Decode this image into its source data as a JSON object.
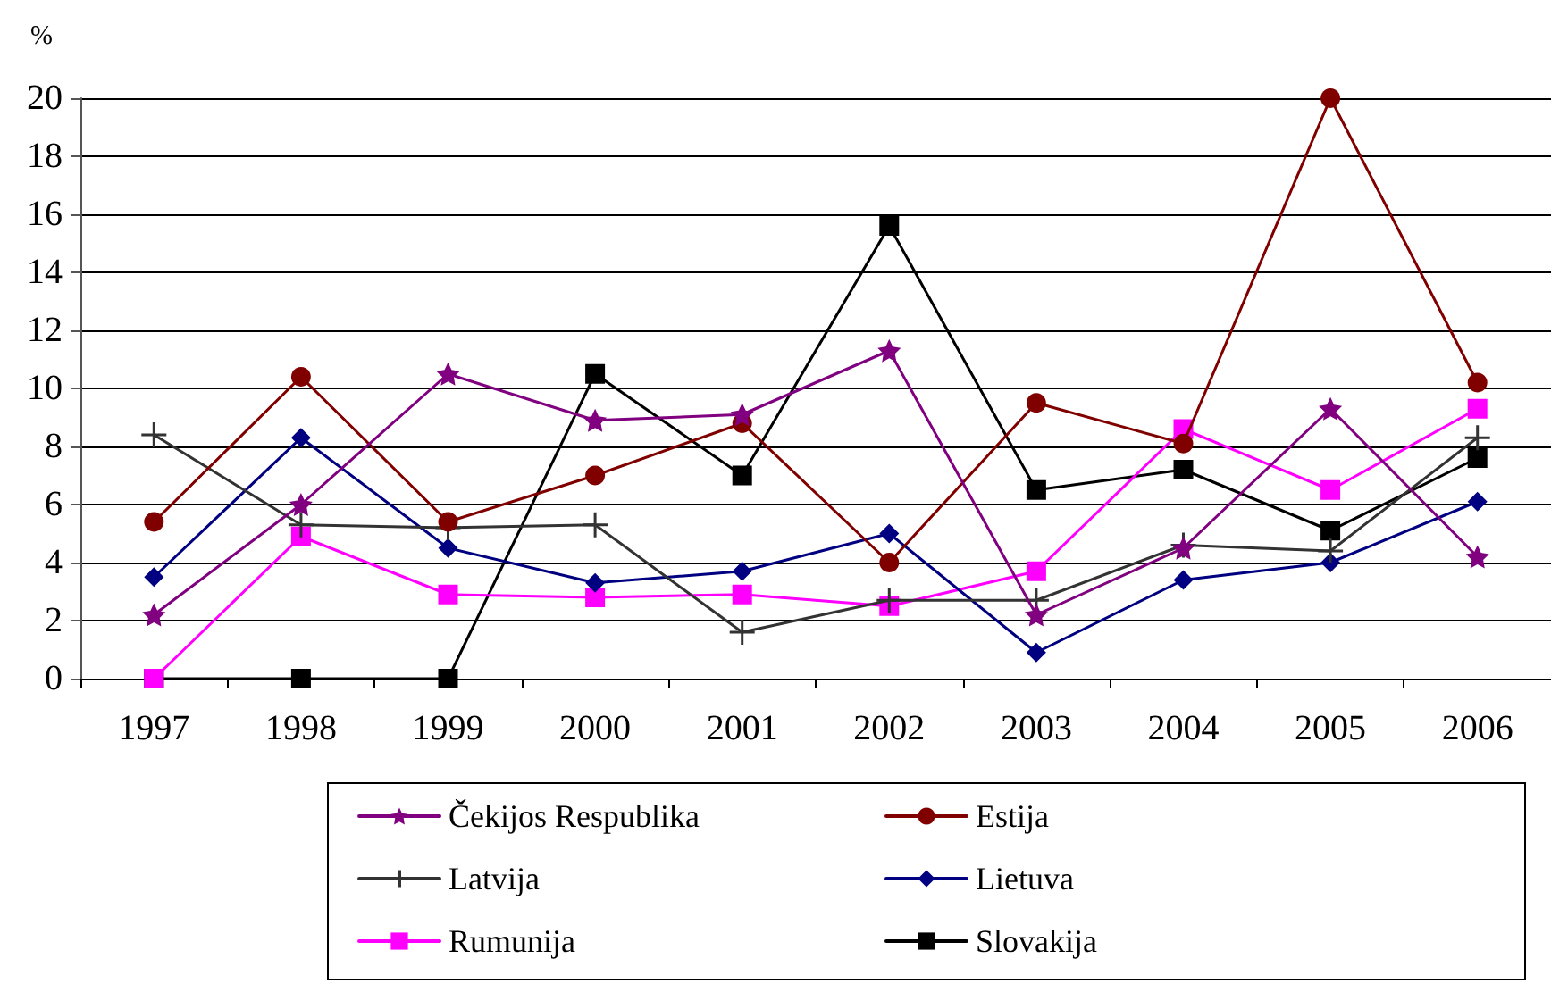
{
  "chart_data": {
    "type": "line",
    "ylabel": "%",
    "categories": [
      "1997",
      "1998",
      "1999",
      "2000",
      "2001",
      "2002",
      "2003",
      "2004",
      "2005",
      "2006"
    ],
    "series": [
      {
        "name": "Čekijos Respublika",
        "color": "#800080",
        "marker": "star",
        "values": [
          2.2,
          6.0,
          10.5,
          8.9,
          9.1,
          11.3,
          2.2,
          4.5,
          9.3,
          4.2
        ]
      },
      {
        "name": "Estija",
        "color": "#800000",
        "marker": "circle",
        "values": [
          5.4,
          10.4,
          5.4,
          7.0,
          8.8,
          4.0,
          9.5,
          8.1,
          20.0,
          10.2
        ]
      },
      {
        "name": "Latvija",
        "color": "#333333",
        "marker": "cross",
        "values": [
          8.4,
          5.3,
          5.2,
          5.3,
          1.6,
          2.7,
          2.7,
          4.6,
          4.4,
          8.3
        ]
      },
      {
        "name": "Lietuva",
        "color": "#000080",
        "marker": "diamond",
        "values": [
          3.5,
          8.3,
          4.5,
          3.3,
          3.7,
          5.0,
          0.9,
          3.4,
          4.0,
          6.1
        ]
      },
      {
        "name": "Rumunija",
        "color": "#ff00ff",
        "marker": "square",
        "values": [
          0,
          4.9,
          2.9,
          2.8,
          2.9,
          2.5,
          3.7,
          8.6,
          6.5,
          9.3
        ]
      },
      {
        "name": "Slovakija",
        "color": "#000000",
        "marker": "square",
        "values": [
          0,
          0,
          0,
          10.5,
          7.0,
          15.6,
          6.5,
          7.2,
          5.1,
          7.6
        ]
      }
    ],
    "ylim": [
      0,
      20
    ],
    "yticks": [
      0,
      2,
      4,
      6,
      8,
      10,
      12,
      14,
      16,
      18,
      20
    ],
    "grid": "y",
    "legend": "bottom",
    "line_style": "solid"
  }
}
